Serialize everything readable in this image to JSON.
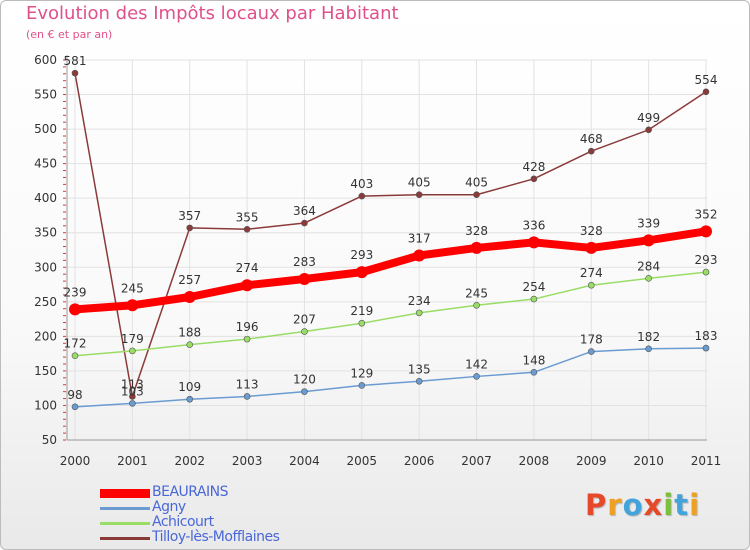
{
  "chart_data": {
    "type": "line",
    "title": "Evolution des Impôts locaux par Habitant",
    "subtitle": "(en € et par an)",
    "xlabel": "",
    "ylabel": "",
    "x": [
      "2000",
      "2001",
      "2002",
      "2003",
      "2004",
      "2005",
      "2006",
      "2007",
      "2008",
      "2009",
      "2010",
      "2011"
    ],
    "ylim": [
      50,
      600
    ],
    "yticks": [
      50,
      100,
      150,
      200,
      250,
      300,
      350,
      400,
      450,
      500,
      550,
      600
    ],
    "grid": true,
    "legend_position": "bottom-left",
    "series": [
      {
        "name": "BEAURAINS",
        "color": "#ff0000",
        "values": [
          239,
          245,
          257,
          274,
          283,
          293,
          317,
          328,
          336,
          328,
          339,
          352
        ]
      },
      {
        "name": "Agny",
        "color": "#6a9bd1",
        "values": [
          98,
          103,
          109,
          113,
          120,
          129,
          135,
          142,
          148,
          178,
          182,
          183
        ]
      },
      {
        "name": "Achicourt",
        "color": "#99dd66",
        "values": [
          172,
          179,
          188,
          196,
          207,
          219,
          234,
          245,
          254,
          274,
          284,
          293
        ]
      },
      {
        "name": "Tilloy-lès-Mofflaines",
        "color": "#8b3a3a",
        "values": [
          581,
          113,
          357,
          355,
          364,
          403,
          405,
          405,
          428,
          468,
          499,
          554
        ]
      }
    ]
  },
  "logo": {
    "letters": [
      {
        "char": "P",
        "color": "#e6492a"
      },
      {
        "char": "r",
        "color": "#f0a020"
      },
      {
        "char": "o",
        "color": "#43a4dc"
      },
      {
        "char": "x",
        "color": "#e6492a"
      },
      {
        "char": "i",
        "color": "#7bbf3a"
      },
      {
        "char": "t",
        "color": "#43a4dc"
      },
      {
        "char": "i",
        "color": "#f0a020"
      }
    ]
  }
}
